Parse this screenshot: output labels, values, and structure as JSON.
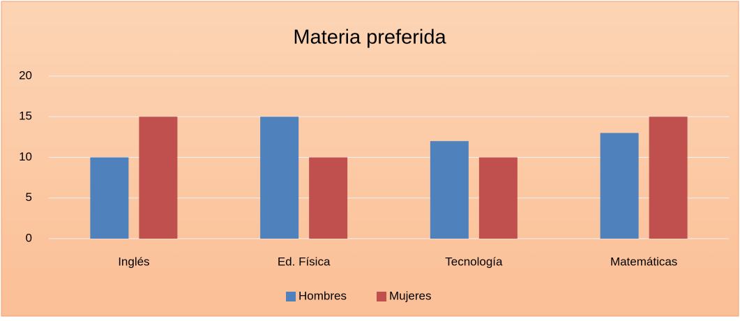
{
  "chart_data": {
    "type": "bar",
    "title": "Materia preferida",
    "categories": [
      "Inglés",
      "Ed. Física",
      "Tecnología",
      "Matemáticas"
    ],
    "series": [
      {
        "name": "Hombres",
        "color": "#4f81bd",
        "values": [
          10,
          15,
          12,
          13
        ]
      },
      {
        "name": "Mujeres",
        "color": "#c0504d",
        "values": [
          15,
          10,
          10,
          15
        ]
      }
    ],
    "ylim": [
      0,
      20
    ],
    "yticks": [
      0,
      5,
      10,
      15,
      20
    ],
    "grid": true,
    "legend": "bottom"
  }
}
